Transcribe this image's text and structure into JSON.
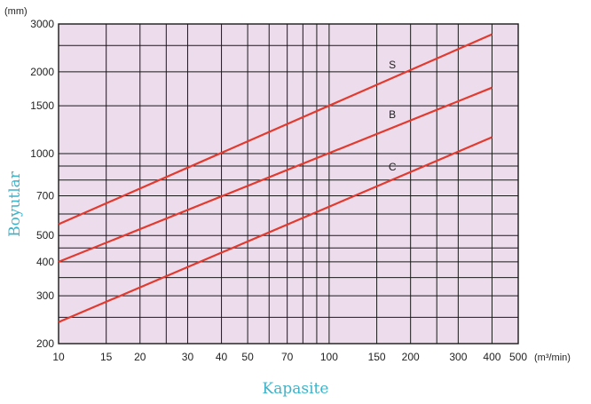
{
  "chart_data": {
    "type": "line",
    "x_scale": "log",
    "y_scale": "log",
    "xlim": [
      10,
      500
    ],
    "ylim": [
      200,
      3000
    ],
    "grid": true,
    "xlabel": "Kapasite",
    "ylabel": "Boyutlar",
    "x_unit": "(m³/min)",
    "y_unit": "(mm)",
    "x_ticks": [
      10,
      15,
      20,
      30,
      40,
      50,
      70,
      100,
      150,
      200,
      300,
      400,
      500
    ],
    "y_ticks": [
      200,
      300,
      400,
      500,
      700,
      1000,
      1500,
      2000,
      3000
    ],
    "x_grid": [
      10,
      15,
      20,
      25,
      30,
      40,
      50,
      60,
      70,
      80,
      90,
      100,
      150,
      200,
      250,
      300,
      400,
      500
    ],
    "y_grid": [
      200,
      250,
      300,
      350,
      400,
      450,
      500,
      600,
      700,
      800,
      900,
      1000,
      1500,
      2000,
      2500,
      3000
    ],
    "series": [
      {
        "name": "S",
        "x": [
          10,
          400
        ],
        "y": [
          550,
          2750
        ]
      },
      {
        "name": "B",
        "x": [
          10,
          400
        ],
        "y": [
          400,
          1750
        ]
      },
      {
        "name": "C",
        "x": [
          10,
          400
        ],
        "y": [
          240,
          1150
        ]
      }
    ],
    "colors": {
      "background": "#ecdcec",
      "grid": "#1a1a1a",
      "line": "#e23a2e",
      "axis_title": "#3db3c9"
    }
  }
}
